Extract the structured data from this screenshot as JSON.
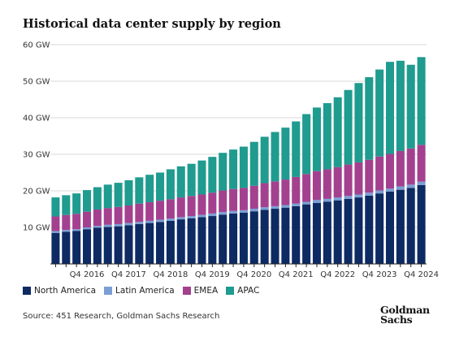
{
  "title": "Historical data center supply by region",
  "source": "Source: 451 Research, Goldman Sachs Research",
  "logo": {
    "line1": "Goldman",
    "line2": "Sachs"
  },
  "legend": [
    {
      "label": "North America",
      "color": "#0d2a63"
    },
    {
      "label": "Latin America",
      "color": "#7a9fd4"
    },
    {
      "label": "EMEA",
      "color": "#a3418f"
    },
    {
      "label": "APAC",
      "color": "#1f9b8f"
    }
  ],
  "chart_data": {
    "type": "bar",
    "stacked": true,
    "unit": "GW",
    "ylim": [
      0,
      60
    ],
    "yticks": [
      10,
      20,
      30,
      40,
      50,
      60
    ],
    "ytick_labels": [
      "10 GW",
      "20 GW",
      "30 GW",
      "40 GW",
      "50 GW",
      "60 GW"
    ],
    "grid": true,
    "legend_position": "bottom-left",
    "xtick_labels": [
      "Q4 2016",
      "Q4 2017",
      "Q4 2018",
      "Q4 2019",
      "Q4 2020",
      "Q4 2021",
      "Q4 2022",
      "Q4 2023",
      "Q4 2024"
    ],
    "categories": [
      "Q1 2016",
      "Q2 2016",
      "Q3 2016",
      "Q4 2016",
      "Q1 2017",
      "Q2 2017",
      "Q3 2017",
      "Q4 2017",
      "Q1 2018",
      "Q2 2018",
      "Q3 2018",
      "Q4 2018",
      "Q1 2019",
      "Q2 2019",
      "Q3 2019",
      "Q4 2019",
      "Q1 2020",
      "Q2 2020",
      "Q3 2020",
      "Q4 2020",
      "Q1 2021",
      "Q2 2021",
      "Q3 2021",
      "Q4 2021",
      "Q1 2022",
      "Q2 2022",
      "Q3 2022",
      "Q4 2022",
      "Q1 2023",
      "Q2 2023",
      "Q3 2023",
      "Q4 2023",
      "Q1 2024",
      "Q2 2024",
      "Q3 2024",
      "Q4 2024"
    ],
    "series": [
      {
        "name": "North America",
        "color": "#0d2a63",
        "values": [
          8.5,
          8.8,
          9.0,
          9.5,
          9.9,
          10.1,
          10.3,
          10.6,
          10.9,
          11.2,
          11.5,
          11.8,
          12.2,
          12.5,
          12.8,
          13.1,
          13.5,
          13.8,
          14.0,
          14.4,
          14.8,
          15.1,
          15.4,
          15.8,
          16.3,
          16.7,
          17.0,
          17.4,
          17.8,
          18.2,
          18.7,
          19.3,
          19.8,
          20.3,
          20.8,
          21.6
        ]
      },
      {
        "name": "Latin America",
        "color": "#7a9fd4",
        "values": [
          0.5,
          0.5,
          0.5,
          0.5,
          0.5,
          0.6,
          0.6,
          0.6,
          0.6,
          0.6,
          0.6,
          0.6,
          0.6,
          0.6,
          0.6,
          0.7,
          0.7,
          0.7,
          0.7,
          0.7,
          0.7,
          0.7,
          0.7,
          0.7,
          0.7,
          0.8,
          0.8,
          0.8,
          0.8,
          0.8,
          0.8,
          0.8,
          0.8,
          0.9,
          0.9,
          0.9
        ]
      },
      {
        "name": "EMEA",
        "color": "#a3418f",
        "values": [
          4.0,
          4.1,
          4.2,
          4.3,
          4.5,
          4.6,
          4.7,
          4.8,
          5.0,
          5.1,
          5.2,
          5.3,
          5.4,
          5.5,
          5.6,
          5.7,
          5.9,
          6.0,
          6.1,
          6.3,
          6.6,
          6.8,
          7.0,
          7.3,
          7.6,
          7.9,
          8.1,
          8.3,
          8.6,
          8.8,
          9.0,
          9.3,
          9.5,
          9.7,
          9.9,
          10.1
        ]
      },
      {
        "name": "APAC",
        "color": "#1f9b8f",
        "values": [
          5.2,
          5.4,
          5.6,
          5.9,
          6.1,
          6.4,
          6.6,
          6.9,
          7.2,
          7.5,
          7.7,
          8.2,
          8.5,
          8.8,
          9.3,
          9.8,
          10.3,
          10.8,
          11.3,
          12.0,
          12.7,
          13.5,
          14.2,
          15.2,
          16.4,
          17.4,
          18.1,
          19.1,
          20.4,
          21.7,
          22.6,
          23.8,
          25.2,
          24.7,
          22.9,
          24.0
        ]
      }
    ]
  }
}
